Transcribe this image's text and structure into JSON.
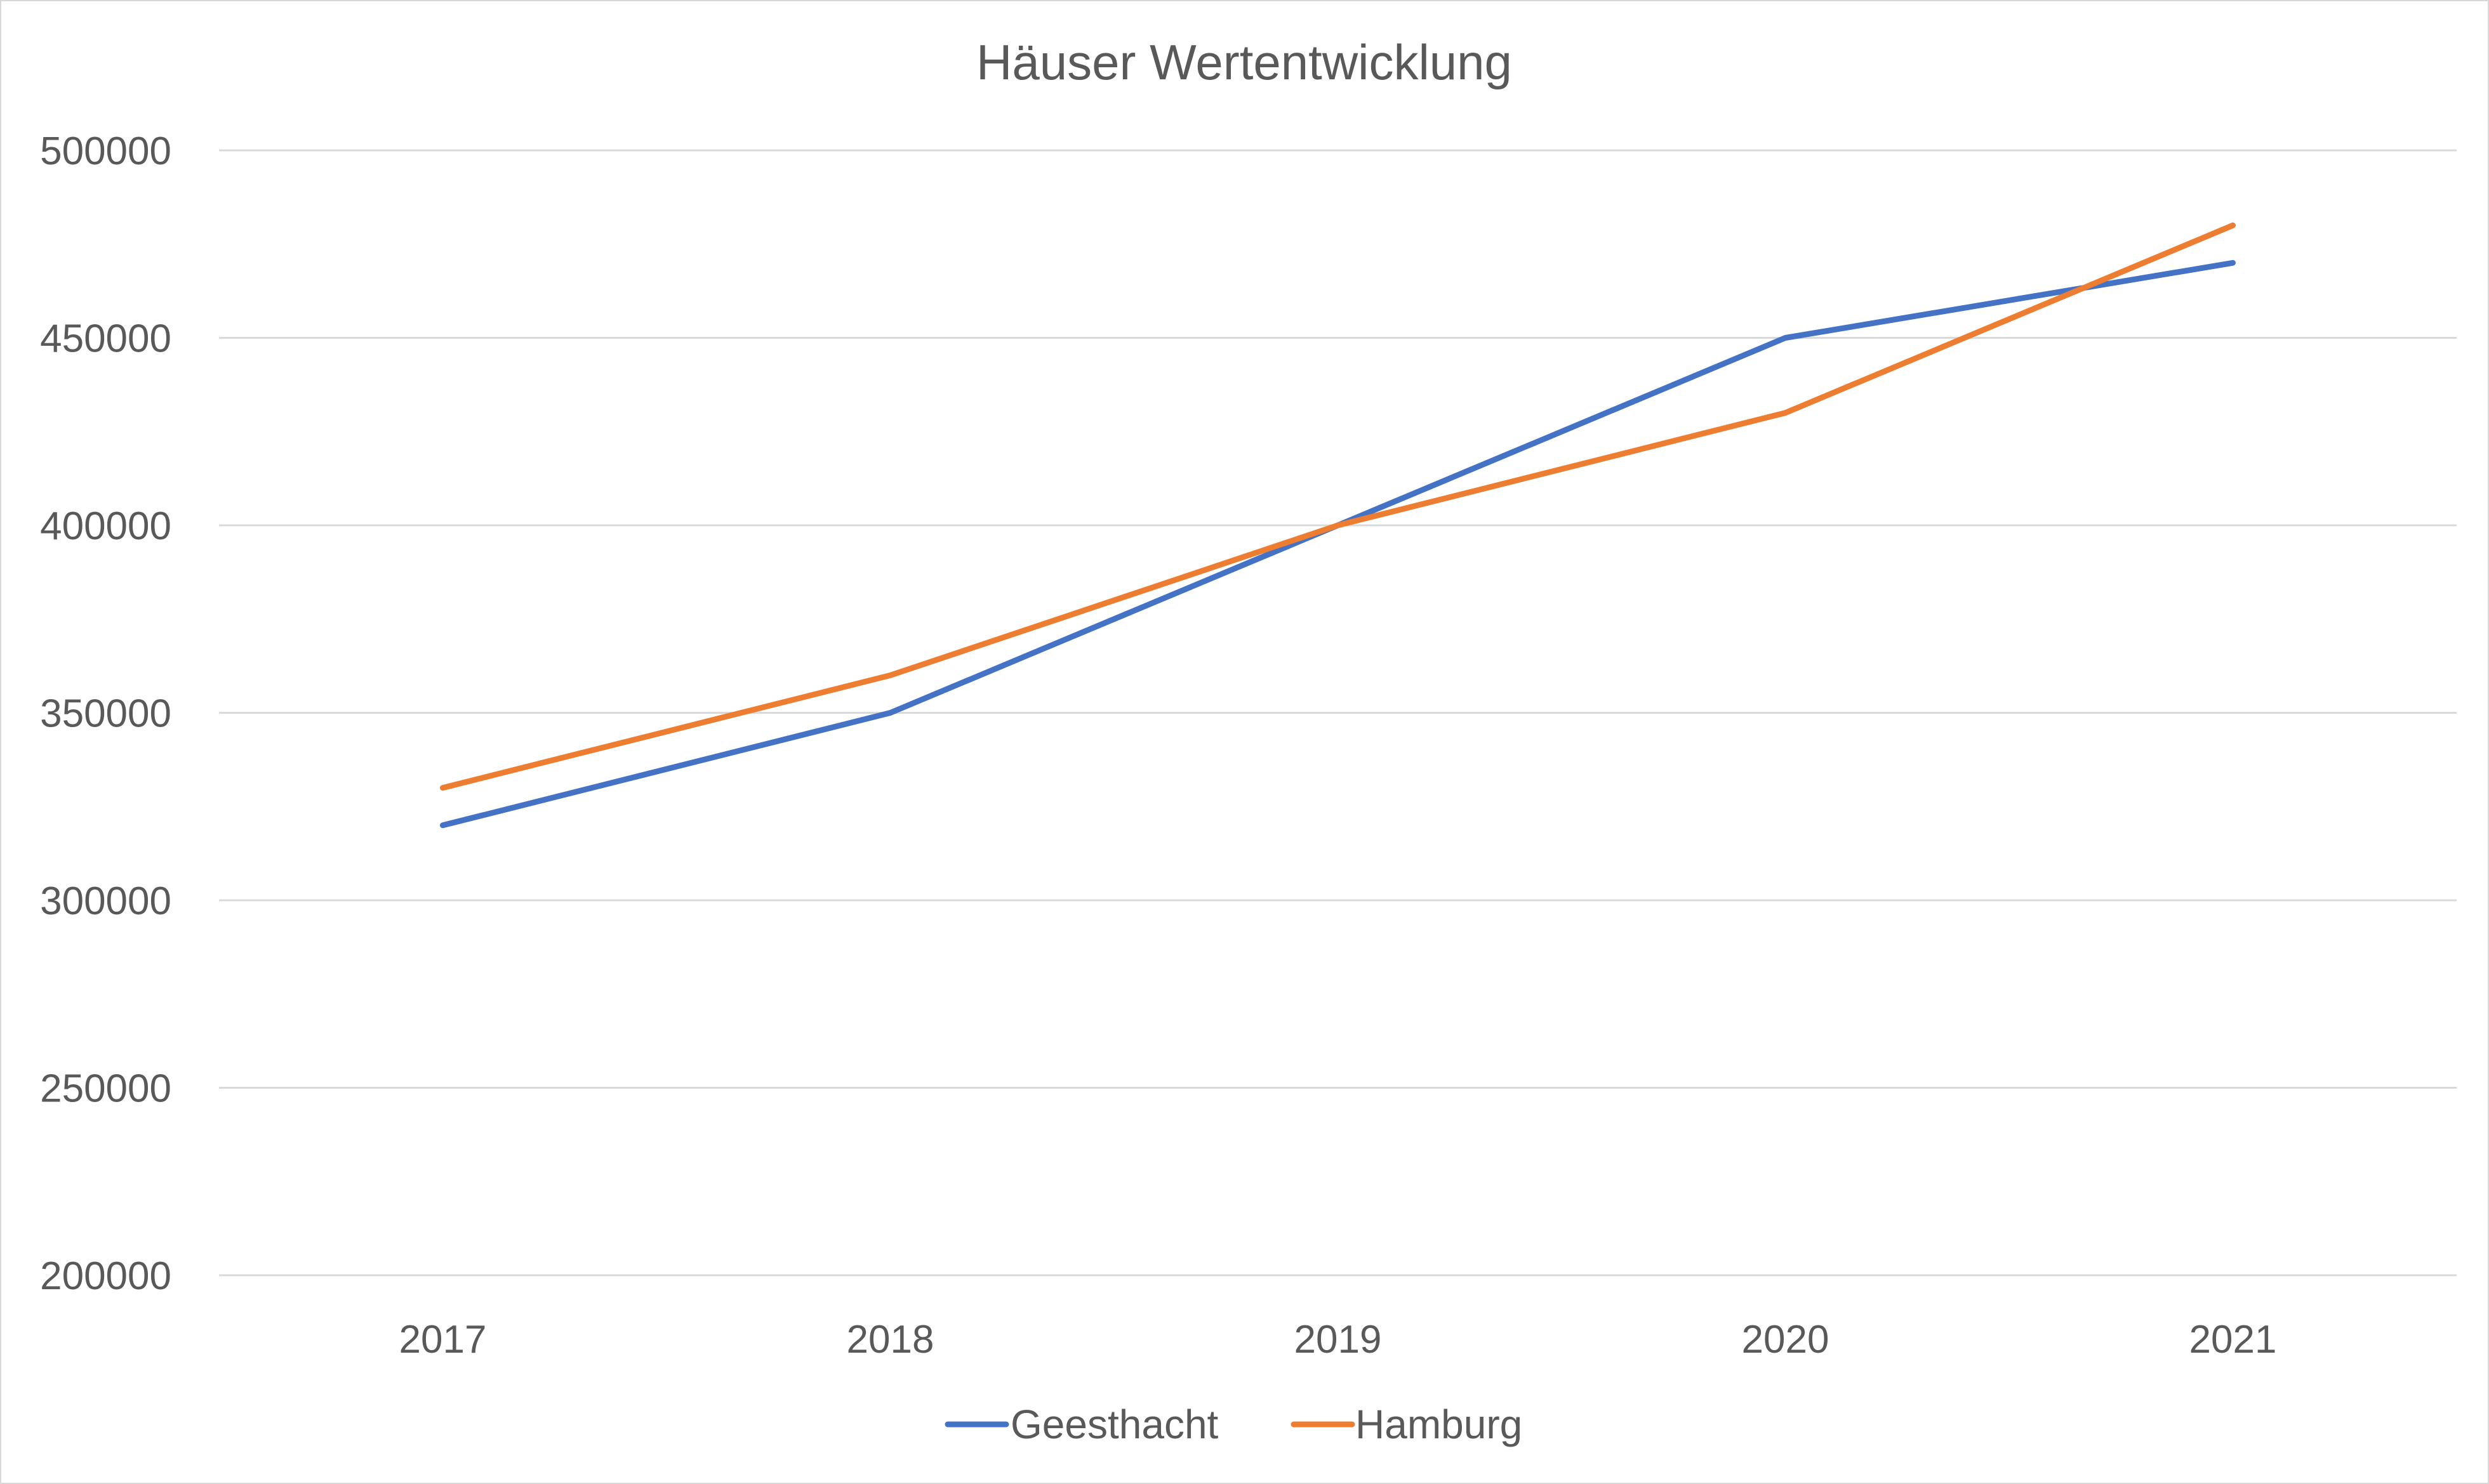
{
  "chart_data": {
    "type": "line",
    "title": "Häuser Wertentwicklung",
    "xlabel": "",
    "ylabel": "",
    "categories": [
      "2017",
      "2018",
      "2019",
      "2020",
      "2021"
    ],
    "ylim": [
      200000,
      500000
    ],
    "y_ticks": [
      "200000",
      "250000",
      "300000",
      "350000",
      "400000",
      "450000",
      "500000"
    ],
    "grid": true,
    "legend_position": "bottom",
    "series": [
      {
        "name": "Geesthacht",
        "color": "#4472c4",
        "values": [
          320000,
          350000,
          400000,
          450000,
          470000
        ]
      },
      {
        "name": "Hamburg",
        "color": "#ed7d31",
        "values": [
          330000,
          360000,
          400000,
          430000,
          480000
        ]
      }
    ]
  }
}
